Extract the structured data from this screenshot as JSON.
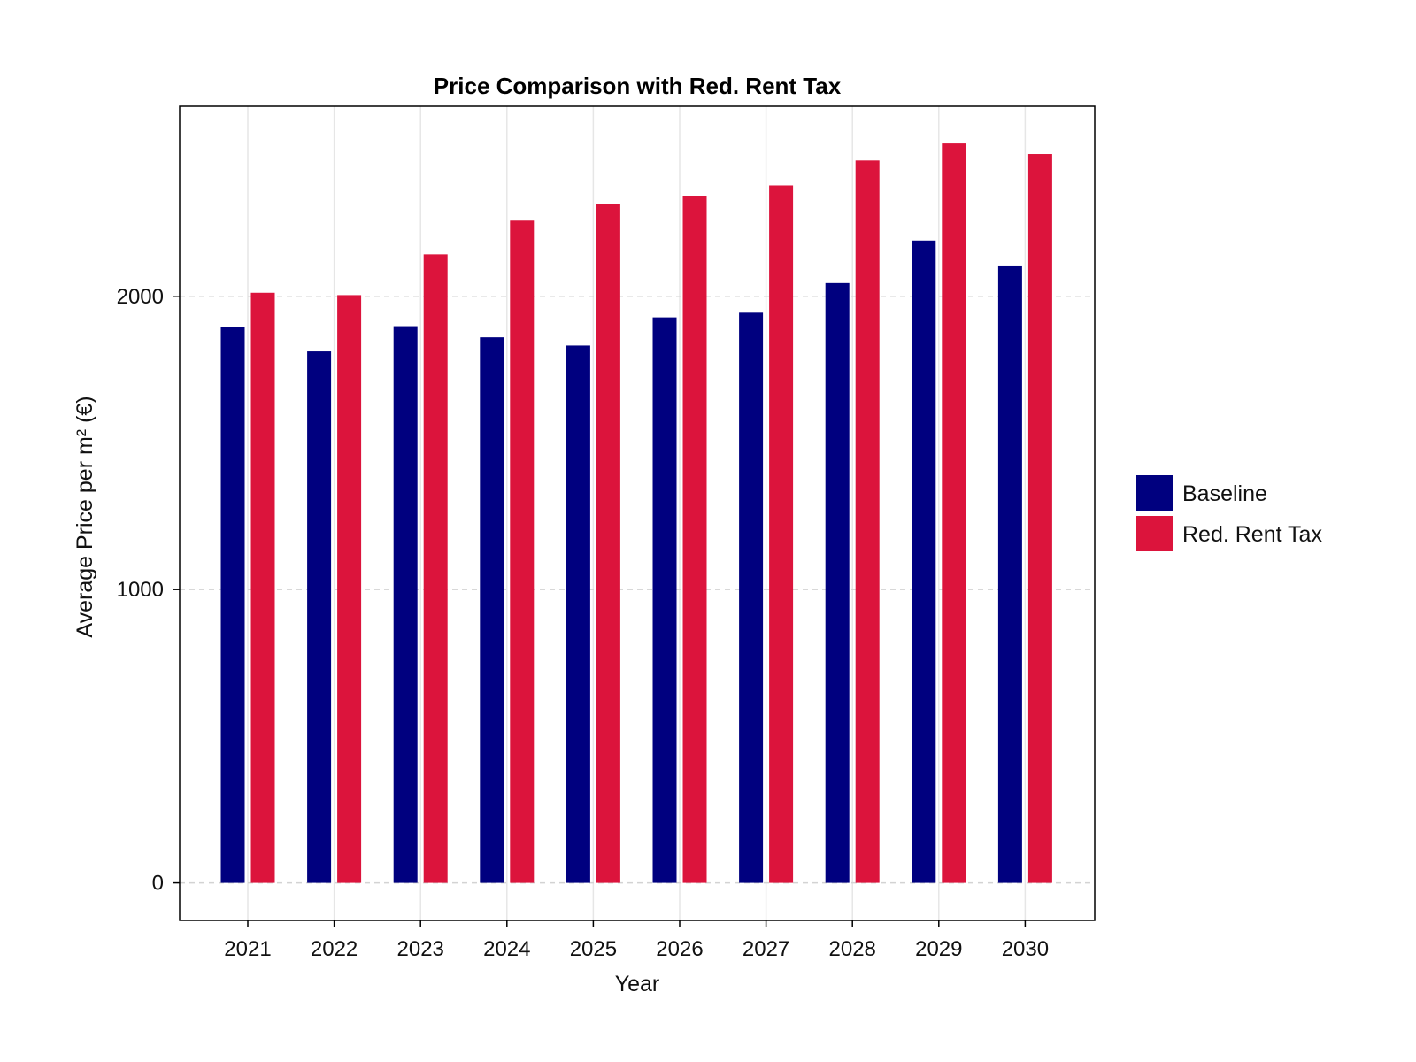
{
  "chart_data": {
    "type": "bar",
    "title": "Price Comparison with Red. Rent Tax",
    "xlabel": "Year",
    "ylabel": "Average Price per m² (€)",
    "categories": [
      "2021",
      "2022",
      "2023",
      "2024",
      "2025",
      "2026",
      "2027",
      "2028",
      "2029",
      "2030"
    ],
    "series": [
      {
        "name": "Baseline",
        "color": "#00007f",
        "values": [
          1895,
          1812,
          1898,
          1860,
          1832,
          1928,
          1944,
          2045,
          2190,
          2105
        ]
      },
      {
        "name": "Red. Rent Tax",
        "color": "#dc143c",
        "values": [
          2012,
          2004,
          2143,
          2258,
          2315,
          2343,
          2378,
          2463,
          2521,
          2485
        ]
      }
    ],
    "yticks": [
      0,
      1000,
      2000
    ],
    "ylim": [
      -128,
      2648
    ],
    "grid": true,
    "legend_position": "right"
  }
}
